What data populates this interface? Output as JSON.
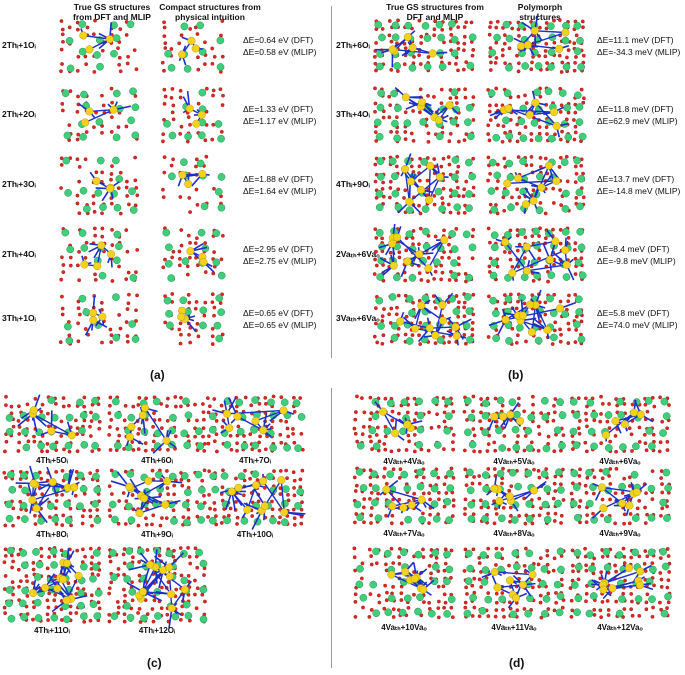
{
  "panel_a": {
    "header_left_l1": "True GS structures",
    "header_left_l2": "from DFT and MLIP",
    "header_right_l1": "Compact structures from",
    "header_right_l2": "physical intuition",
    "caption": "(a)",
    "rows": [
      {
        "label": "2Thᵢ+1Oᵢ",
        "dft": "ΔE=0.64 eV (DFT)",
        "mlip": "ΔE=0.58 eV (MLIP)"
      },
      {
        "label": "2Thᵢ+2Oᵢ",
        "dft": "ΔE=1.33 eV (DFT)",
        "mlip": "ΔE=1.17 eV (MLIP)"
      },
      {
        "label": "2Thᵢ+3Oᵢ",
        "dft": "ΔE=1.88 eV (DFT)",
        "mlip": "ΔE=1.64 eV (MLIP)"
      },
      {
        "label": "2Thᵢ+4Oᵢ",
        "dft": "ΔE=2.95 eV (DFT)",
        "mlip": "ΔE=2.75 eV (MLIP)"
      },
      {
        "label": "3Thᵢ+1Oᵢ",
        "dft": "ΔE=0.65 eV (DFT)",
        "mlip": "ΔE=0.65 eV (MLIP)"
      }
    ]
  },
  "panel_b": {
    "header_left_l1": "True GS structures from",
    "header_left_l2": "DFT and MLIP",
    "header_right_l1": "Polymorph",
    "header_right_l2": "structures",
    "caption": "(b)",
    "rows": [
      {
        "label": "2Thᵢ+6Oᵢ",
        "dft": "ΔE=11.1 meV (DFT)",
        "mlip": "ΔE=-34.3 meV (MLIP)"
      },
      {
        "label": "3Thᵢ+4Oᵢ",
        "dft": "ΔE=11.8 meV (DFT)",
        "mlip": "ΔE=62.9 meV (MLIP)"
      },
      {
        "label": "4Thᵢ+9Oᵢ",
        "dft": "ΔE=13.7 meV (DFT)",
        "mlip": "ΔE=-14.8 meV (MLIP)"
      },
      {
        "label": "2Vaₜₕ+6Vaₒ",
        "dft": "ΔE=8.4 meV (DFT)",
        "mlip": "ΔE=-9.8 meV (MLIP)"
      },
      {
        "label": "3Vaₜₕ+6Vaₒ",
        "dft": "ΔE=5.8 meV (DFT)",
        "mlip": "ΔE=74.0 meV (MLIP)"
      }
    ]
  },
  "panel_c": {
    "caption": "(c)",
    "labels": [
      "4Thᵢ+5Oᵢ",
      "4Thᵢ+6Oᵢ",
      "4Thᵢ+7Oᵢ",
      "4Thᵢ+8Oᵢ",
      "4Thᵢ+9Oᵢ",
      "4Thᵢ+10Oᵢ",
      "4Thᵢ+11Oᵢ",
      "4Thᵢ+12Oᵢ"
    ]
  },
  "panel_d": {
    "caption": "(d)",
    "labels": [
      "4Vaₜₕ+4Vaₒ",
      "4Vaₜₕ+5Vaₒ",
      "4Vaₜₕ+6Vaₒ",
      "4Vaₜₕ+7Vaₒ",
      "4Vaₜₕ+8Vaₒ",
      "4Vaₜₕ+9Vaₒ",
      "4Vaₜₕ+10Vaₒ",
      "4Vaₜₕ+11Vaₒ",
      "4Vaₜₕ+12Vaₒ"
    ]
  },
  "colors": {
    "thorium": "#3fcf7a",
    "oxygen": "#e0261f",
    "interstitial": "#f2d21b",
    "bond": "#1b2fc9"
  }
}
